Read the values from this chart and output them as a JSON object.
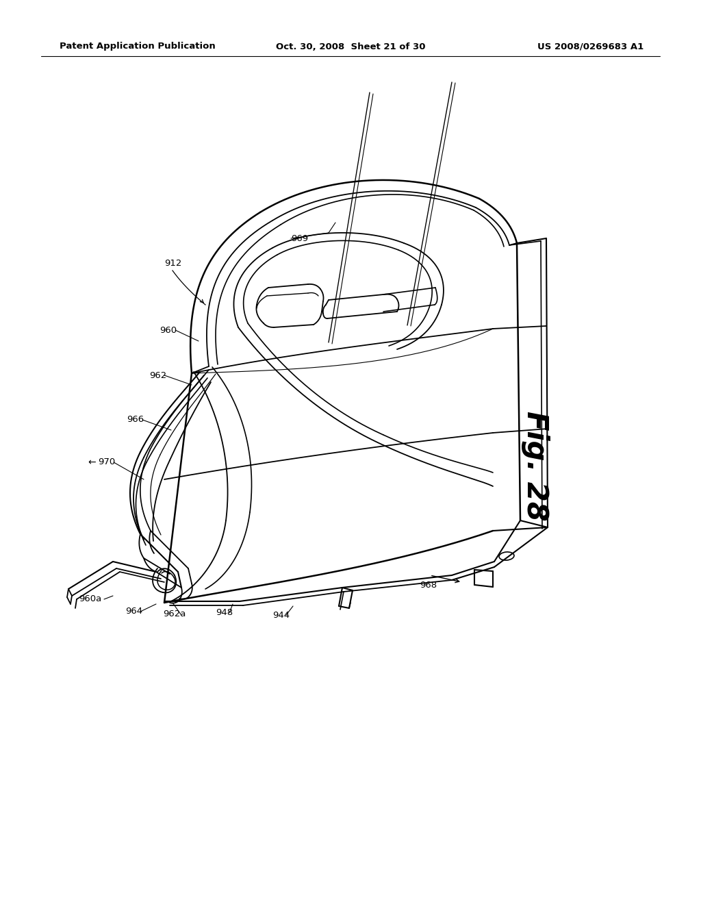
{
  "background_color": "#ffffff",
  "header_left": "Patent Application Publication",
  "header_center": "Oct. 30, 2008  Sheet 21 of 30",
  "header_right": "US 2008/0269683 A1",
  "figure_label": "Fig. 28",
  "line_color": "#000000",
  "text_color": "#000000"
}
